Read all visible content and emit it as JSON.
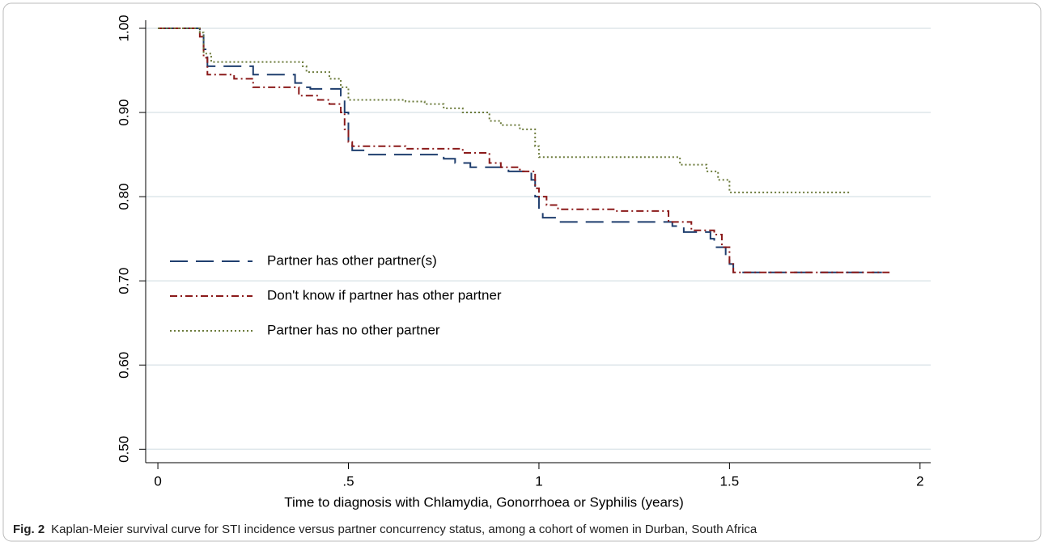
{
  "chart_data": {
    "type": "step",
    "caption_label": "Fig. 2",
    "caption": "Kaplan-Meier survival curve for STI incidence versus partner concurrency status, among a cohort of women in Durban, South Africa",
    "x_label": "Time to diagnosis with Chlamydia, Gonorrhoea or Syphilis (years)",
    "xlim": [
      -0.032,
      2.028
    ],
    "ylim": [
      0.484,
      1.0096
    ],
    "xticks": [
      0,
      {
        "value": 0.5,
        "label": ".5"
      },
      1,
      {
        "value": 1.5,
        "label": "1.5"
      },
      2
    ],
    "yticks": [
      {
        "value": 0.5,
        "label": "0.50"
      },
      {
        "value": 0.6,
        "label": "0.60"
      },
      {
        "value": 0.7,
        "label": "0.70"
      },
      {
        "value": 0.8,
        "label": "0.80"
      },
      {
        "value": 0.9,
        "label": "0.90"
      },
      {
        "value": 1,
        "label": "1.00"
      }
    ],
    "grid": true,
    "legend": "center-left",
    "series": [
      {
        "name": "Partner has other partner(s)",
        "color": "#1f3e6e",
        "style": "dashed",
        "x": [
          0,
          0.11,
          0.12,
          0.13,
          0.25,
          0.36,
          0.38,
          0.4,
          0.48,
          0.49,
          0.5,
          0.51,
          0.55,
          0.75,
          0.78,
          0.82,
          0.92,
          0.98,
          0.99,
          1.0,
          1.01,
          1.05,
          1.35,
          1.38,
          1.45,
          1.46,
          1.49,
          1.5,
          1.51,
          1.9
        ],
        "values": [
          1.0,
          0.995,
          0.975,
          0.955,
          0.945,
          0.935,
          0.93,
          0.928,
          0.92,
          0.9,
          0.865,
          0.855,
          0.85,
          0.845,
          0.84,
          0.835,
          0.83,
          0.82,
          0.8,
          0.785,
          0.775,
          0.77,
          0.765,
          0.758,
          0.75,
          0.74,
          0.73,
          0.72,
          0.71,
          0.71
        ]
      },
      {
        "name": "Don't know if partner has other partner",
        "color": "#8b1a1a",
        "style": "dashdot",
        "x": [
          0,
          0.11,
          0.12,
          0.13,
          0.2,
          0.25,
          0.37,
          0.42,
          0.45,
          0.48,
          0.49,
          0.5,
          0.51,
          0.65,
          0.8,
          0.87,
          0.9,
          0.95,
          0.99,
          1.0,
          1.02,
          1.05,
          1.2,
          1.34,
          1.4,
          1.46,
          1.48,
          1.5,
          1.51,
          1.92
        ],
        "values": [
          1.0,
          0.99,
          0.965,
          0.945,
          0.94,
          0.93,
          0.92,
          0.915,
          0.91,
          0.9,
          0.88,
          0.865,
          0.86,
          0.857,
          0.852,
          0.84,
          0.835,
          0.83,
          0.81,
          0.8,
          0.79,
          0.785,
          0.783,
          0.77,
          0.76,
          0.755,
          0.74,
          0.72,
          0.71,
          0.71
        ]
      },
      {
        "name": "Partner has no other partner",
        "color": "#6b7a3a",
        "style": "dotted",
        "x": [
          0,
          0.11,
          0.12,
          0.14,
          0.38,
          0.39,
          0.45,
          0.48,
          0.5,
          0.65,
          0.7,
          0.75,
          0.8,
          0.87,
          0.9,
          0.95,
          0.99,
          1.0,
          1.37,
          1.44,
          1.47,
          1.5,
          1.82
        ],
        "values": [
          1.0,
          0.995,
          0.97,
          0.96,
          0.955,
          0.948,
          0.94,
          0.93,
          0.915,
          0.913,
          0.91,
          0.905,
          0.9,
          0.89,
          0.885,
          0.88,
          0.86,
          0.847,
          0.838,
          0.83,
          0.82,
          0.805,
          0.805
        ]
      }
    ]
  }
}
